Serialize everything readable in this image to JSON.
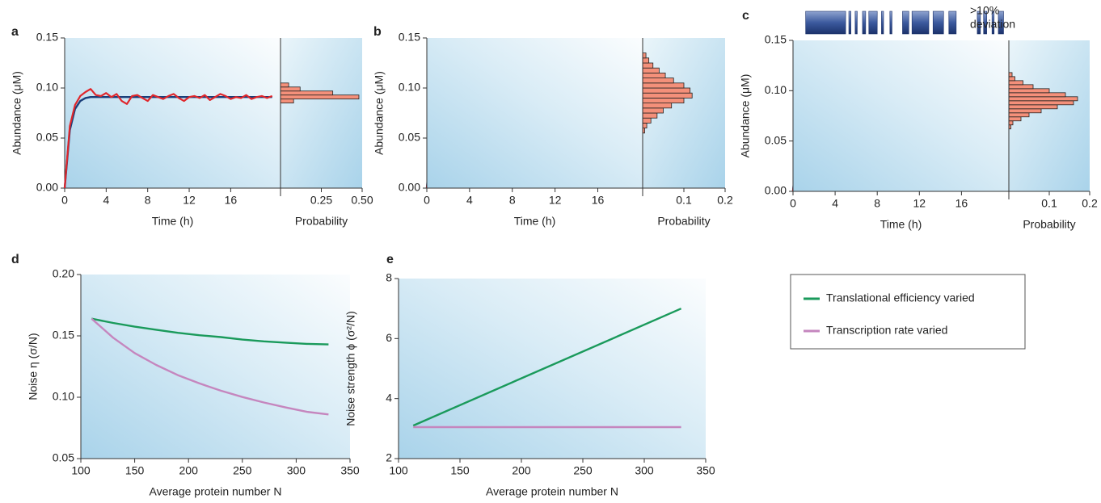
{
  "chart_data": [
    {
      "type": "line",
      "panel": "a",
      "xlabel": "Time (h)",
      "ylabel": "Abundance (μM)",
      "x": [
        0,
        0.5,
        1,
        1.5,
        2,
        2.5,
        3,
        3.5,
        4,
        4.5,
        5,
        5.5,
        6,
        6.5,
        7,
        7.5,
        8,
        8.5,
        9,
        9.5,
        10,
        10.5,
        11,
        11.5,
        12,
        12.5,
        13,
        13.5,
        14,
        14.5,
        15,
        15.5,
        16,
        16.5,
        17,
        17.5,
        18,
        18.5,
        19,
        19.5,
        20
      ],
      "xlim": [
        0,
        20.8
      ],
      "xticks": [
        0,
        4,
        8,
        12,
        16
      ],
      "ylim": [
        0,
        0.15
      ],
      "yticks": [
        {
          "value": 0,
          "label": "0.00"
        },
        0.05,
        {
          "value": 0.1,
          "label": "0.10"
        },
        0.15
      ],
      "series": [
        {
          "color": "#1a3f7a",
          "values": [
            0,
            0.058,
            0.079,
            0.087,
            0.09,
            0.091,
            0.091,
            0.091,
            0.091,
            0.091,
            0.091,
            0.091,
            0.091,
            0.091,
            0.091,
            0.091,
            0.091,
            0.091,
            0.091,
            0.091,
            0.091,
            0.091,
            0.091,
            0.091,
            0.091,
            0.091,
            0.091,
            0.091,
            0.091,
            0.091,
            0.091,
            0.091,
            0.091,
            0.091,
            0.091,
            0.091,
            0.091,
            0.091,
            0.091,
            0.091,
            0.091
          ]
        },
        {
          "color": "#e0262b",
          "values": [
            0,
            0.062,
            0.083,
            0.092,
            0.096,
            0.099,
            0.093,
            0.092,
            0.095,
            0.091,
            0.094,
            0.087,
            0.084,
            0.092,
            0.093,
            0.09,
            0.087,
            0.093,
            0.091,
            0.089,
            0.092,
            0.094,
            0.09,
            0.087,
            0.091,
            0.092,
            0.09,
            0.093,
            0.088,
            0.091,
            0.094,
            0.092,
            0.089,
            0.091,
            0.09,
            0.093,
            0.089,
            0.091,
            0.092,
            0.09,
            0.092
          ]
        }
      ],
      "histogram": {
        "xlabel": "Probability",
        "xlim": [
          0,
          0.5
        ],
        "xticks": [
          0.25,
          {
            "value": 0.5,
            "label": "0.50"
          }
        ],
        "bins": [
          0.085,
          0.089,
          0.093,
          0.097,
          0.101,
          0.105
        ],
        "values": [
          0.08,
          0.48,
          0.32,
          0.12,
          0.05
        ],
        "color": "#f4907a"
      }
    },
    {
      "type": "line",
      "panel": "b",
      "xlabel": "Time (h)",
      "ylabel": "Abundance (μM)",
      "x": [
        0,
        0.5,
        1,
        1.5,
        2,
        2.5,
        3,
        3.5,
        4,
        4.5,
        5,
        5.5,
        6,
        6.5,
        7,
        7.5,
        8,
        8.5,
        9,
        9.5,
        10,
        10.5,
        11,
        11.5,
        12,
        12.5,
        13,
        13.5,
        14,
        14.5,
        15,
        15.5,
        16,
        16.5,
        17,
        17.5,
        18,
        18.5,
        19,
        19.5,
        20
      ],
      "xlim": [
        0,
        20.2
      ],
      "xticks": [
        0,
        4,
        8,
        12,
        16
      ],
      "ylim": [
        0,
        0.15
      ],
      "yticks": [
        {
          "value": 0,
          "label": "0.00"
        },
        0.05,
        {
          "value": 0.1,
          "label": "0.10"
        },
        0.15
      ],
      "series": [
        {
          "color": "#1a3f7a",
          "values": [
            0,
            0.058,
            0.079,
            0.087,
            0.09,
            0.091,
            0.091,
            0.091,
            0.091,
            0.091,
            0.091,
            0.091,
            0.091,
            0.091,
            0.091,
            0.091,
            0.091,
            0.091,
            0.091,
            0.091,
            0.091,
            0.091,
            0.091,
            0.091,
            0.091,
            0.091,
            0.091,
            0.091,
            0.091,
            0.091,
            0.091,
            0.091,
            0.091,
            0.091,
            0.091,
            0.091,
            0.091,
            0.091,
            0.091,
            0.091,
            0.091
          ]
        },
        {
          "color": "#e0262b",
          "values": [
            0,
            0.045,
            0.07,
            0.09,
            0.112,
            0.12,
            0.105,
            0.125,
            0.11,
            0.095,
            0.1,
            0.09,
            0.105,
            0.08,
            0.065,
            0.09,
            0.1,
            0.085,
            0.095,
            0.105,
            0.09,
            0.08,
            0.1,
            0.09,
            0.075,
            0.095,
            0.1,
            0.085,
            0.09,
            0.08,
            0.095,
            0.11,
            0.1,
            0.075,
            0.085,
            0.105,
            0.11,
            0.09,
            0.08,
            0.085,
            0.09
          ]
        }
      ],
      "histogram": {
        "xlabel": "Probability",
        "xlim": [
          0,
          0.2
        ],
        "xticks": [
          0.1,
          0.2
        ],
        "bins": [
          0.055,
          0.06,
          0.065,
          0.07,
          0.075,
          0.08,
          0.085,
          0.09,
          0.095,
          0.1,
          0.105,
          0.11,
          0.115,
          0.12,
          0.125,
          0.13,
          0.135
        ],
        "values": [
          0.005,
          0.01,
          0.02,
          0.035,
          0.05,
          0.07,
          0.1,
          0.12,
          0.115,
          0.1,
          0.075,
          0.055,
          0.04,
          0.025,
          0.015,
          0.008
        ],
        "color": "#f4907a"
      }
    },
    {
      "type": "line",
      "panel": "c",
      "xlabel": "Time (h)",
      "ylabel": "Abundance (μM)",
      "x": [
        0,
        0.5,
        1,
        1.5,
        2,
        2.5,
        3,
        3.5,
        4,
        4.5,
        5,
        5.5,
        6,
        6.5,
        7,
        7.5,
        8,
        8.5,
        9,
        9.5,
        10,
        10.5,
        11,
        11.5,
        12,
        12.5,
        13,
        13.5,
        14,
        14.5,
        15,
        15.5,
        16,
        16.5,
        17,
        17.5,
        18,
        18.5,
        19,
        19.5,
        20
      ],
      "xlim": [
        0,
        20.5
      ],
      "xticks": [
        0,
        4,
        8,
        12,
        16
      ],
      "ylim": [
        0,
        0.15
      ],
      "yticks": [
        {
          "value": 0,
          "label": "0.00"
        },
        0.05,
        {
          "value": 0.1,
          "label": "0.10"
        },
        0.15
      ],
      "series": [
        {
          "color": "#1a3f7a",
          "values": [
            0,
            0.058,
            0.079,
            0.087,
            0.09,
            0.091,
            0.091,
            0.091,
            0.091,
            0.091,
            0.091,
            0.091,
            0.091,
            0.091,
            0.091,
            0.091,
            0.091,
            0.091,
            0.091,
            0.091,
            0.091,
            0.091,
            0.091,
            0.091,
            0.091,
            0.091,
            0.091,
            0.091,
            0.091,
            0.091,
            0.091,
            0.091,
            0.091,
            0.091,
            0.091,
            0.091,
            0.091,
            0.091,
            0.091,
            0.091,
            0.091
          ]
        },
        {
          "color": "#e0262b",
          "values": [
            0,
            0.05,
            0.075,
            0.095,
            0.1,
            0.085,
            0.07,
            0.065,
            0.072,
            0.08,
            0.09,
            0.095,
            0.1,
            0.085,
            0.07,
            0.08,
            0.1,
            0.09,
            0.095,
            0.11,
            0.1,
            0.105,
            0.09,
            0.085,
            0.08,
            0.1,
            0.09,
            0.108,
            0.115,
            0.1,
            0.09,
            0.085,
            0.07,
            0.095,
            0.09,
            0.085,
            0.08,
            0.09,
            0.085,
            0.09,
            0.088
          ]
        }
      ],
      "histogram": {
        "xlabel": "Probability",
        "xlim": [
          0,
          0.2
        ],
        "xticks": [
          0.1,
          0.2
        ],
        "bins": [
          0.062,
          0.066,
          0.07,
          0.074,
          0.078,
          0.082,
          0.086,
          0.09,
          0.094,
          0.098,
          0.102,
          0.106,
          0.11,
          0.114,
          0.118
        ],
        "values": [
          0.005,
          0.01,
          0.03,
          0.05,
          0.08,
          0.12,
          0.16,
          0.17,
          0.14,
          0.1,
          0.06,
          0.035,
          0.015,
          0.008
        ],
        "color": "#f4907a"
      },
      "deviation_intervals": [
        [
          1.2,
          5.0
        ],
        [
          5.3,
          5.5
        ],
        [
          5.9,
          6.1
        ],
        [
          6.6,
          6.9
        ],
        [
          7.2,
          8.0
        ],
        [
          8.4,
          8.6
        ],
        [
          9.2,
          9.4
        ],
        [
          10.4,
          11.0
        ],
        [
          11.3,
          12.9
        ],
        [
          13.3,
          14.3
        ],
        [
          14.8,
          15.5
        ],
        [
          17.5,
          17.8
        ],
        [
          18.1,
          18.4
        ],
        [
          18.9,
          19.1
        ],
        [
          19.5,
          20.0
        ]
      ],
      "annotation": [
        ">10%",
        "deviation"
      ]
    },
    {
      "type": "line",
      "panel": "d",
      "xlabel": "Average protein number N",
      "ylabel": "Noise η (σ/N)",
      "x": [
        110,
        130,
        150,
        170,
        190,
        210,
        230,
        250,
        270,
        290,
        310,
        330
      ],
      "xlim": [
        100,
        350
      ],
      "xticks": [
        100,
        150,
        200,
        250,
        300,
        350
      ],
      "ylim": [
        0.05,
        0.2
      ],
      "yticks": [
        0.05,
        {
          "value": 0.1,
          "label": "0.10"
        },
        0.15,
        {
          "value": 0.2,
          "label": "0.20"
        }
      ],
      "series": [
        {
          "name": "Translational efficiency varied",
          "color": "#1a9a5b",
          "values": [
            0.164,
            0.1605,
            0.1575,
            0.155,
            0.1525,
            0.1505,
            0.149,
            0.147,
            0.1455,
            0.1445,
            0.1435,
            0.143
          ]
        },
        {
          "name": "Transcription rate varied",
          "color": "#c586be",
          "values": [
            0.164,
            0.1485,
            0.136,
            0.1263,
            0.118,
            0.1113,
            0.1053,
            0.1002,
            0.0957,
            0.0917,
            0.0881,
            0.086
          ]
        }
      ]
    },
    {
      "type": "line",
      "panel": "e",
      "xlabel": "Average protein number N",
      "ylabel": "Noise strength ϕ (σ²/N)",
      "x": [
        112,
        330
      ],
      "xlim": [
        100,
        350
      ],
      "xticks": [
        100,
        150,
        200,
        250,
        300,
        350
      ],
      "ylim": [
        2,
        8
      ],
      "yticks": [
        2,
        4,
        6,
        8
      ],
      "series": [
        {
          "color": "#1a9a5b",
          "values": [
            3.1,
            7.0
          ]
        },
        {
          "color": "#c586be",
          "values": [
            3.05,
            3.05
          ]
        }
      ]
    }
  ]
}
